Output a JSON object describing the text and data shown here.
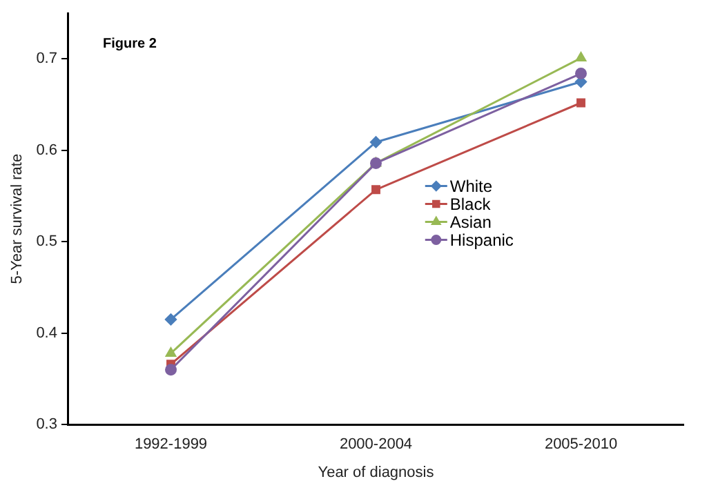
{
  "chart_data": {
    "type": "line",
    "xlabel": "Year of diagnosis",
    "ylabel": "5-Year survival rate",
    "annotations": [
      "Figure 2"
    ],
    "categories": [
      "1992-1999",
      "2000-2004",
      "2005-2010"
    ],
    "series": [
      {
        "name": "White",
        "color": "#4a7ebb",
        "marker": "diamond",
        "values": [
          0.415,
          0.609,
          0.675
        ]
      },
      {
        "name": "Black",
        "color": "#be4b48",
        "marker": "square",
        "values": [
          0.366,
          0.557,
          0.652
        ]
      },
      {
        "name": "Asian",
        "color": "#98b954",
        "marker": "triangle",
        "values": [
          0.378,
          0.586,
          0.701
        ]
      },
      {
        "name": "Hispanic",
        "color": "#7d60a0",
        "marker": "circle",
        "values": [
          0.36,
          0.586,
          0.684
        ]
      }
    ],
    "ylim": [
      0.3,
      0.75
    ],
    "yticks": [
      0.3,
      0.4,
      0.5,
      0.6,
      0.7
    ],
    "grid": false,
    "legend": "right",
    "line_style": "solid"
  }
}
